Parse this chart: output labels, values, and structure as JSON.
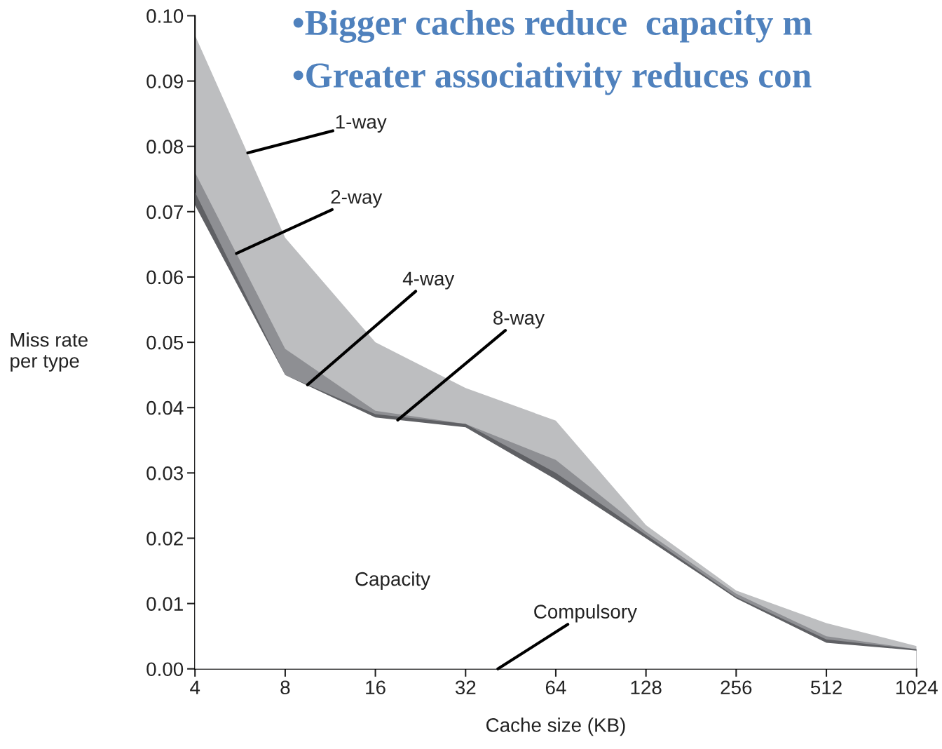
{
  "chart_data": {
    "type": "area",
    "xlabel": "Cache size (KB)",
    "ylabel": "Miss rate\nper type",
    "x": [
      4,
      8,
      16,
      32,
      64,
      128,
      256,
      512,
      1024
    ],
    "log": "x",
    "xlim": [
      4,
      1024
    ],
    "xticks": [
      4,
      8,
      16,
      32,
      64,
      128,
      256,
      512,
      1024
    ],
    "series": [
      {
        "color": "#bdbec0",
        "values": [
          0.097,
          0.066,
          0.05,
          0.043,
          0.038,
          0.022,
          0.012,
          0.007,
          0.0035
        ]
      },
      {
        "color": "#8e8f93",
        "values": [
          0.076,
          0.049,
          0.0395,
          0.0375,
          0.032,
          0.021,
          0.0115,
          0.005,
          0.003
        ]
      },
      {
        "color": "#5f6064",
        "values": [
          0.073,
          0.045,
          0.039,
          0.0375,
          0.03,
          0.0205,
          0.011,
          0.0045,
          0.003
        ]
      },
      {
        "color": "#ffffff",
        "values": [
          0.071,
          0.045,
          0.0385,
          0.037,
          0.029,
          0.02,
          0.0108,
          0.004,
          0.0028
        ]
      }
    ],
    "ylim": [
      0,
      0.1
    ],
    "yticks": [
      {
        "value": 0,
        "label": "0.00"
      },
      {
        "value": 0.01,
        "label": "0.01"
      },
      {
        "value": 0.02,
        "label": "0.02"
      },
      {
        "value": 0.03,
        "label": "0.03"
      },
      {
        "value": 0.04,
        "label": "0.04"
      },
      {
        "value": 0.05,
        "label": "0.05"
      },
      {
        "value": 0.06,
        "label": "0.06"
      },
      {
        "value": 0.07,
        "label": "0.07"
      },
      {
        "value": 0.08,
        "label": "0.08"
      },
      {
        "value": 0.09,
        "label": "0.09"
      },
      {
        "value": 0.1,
        "label": "0.10"
      }
    ],
    "grid": false,
    "legend": false,
    "annotations": [
      "•Bigger caches reduce  capacity m",
      "•Greater associativity reduces con",
      {
        "text": "1-way",
        "x": 6,
        "y": 0.079
      },
      {
        "text": "2-way",
        "x": 5.5,
        "y": 0.0636
      },
      {
        "text": "4-way",
        "x": 9.5,
        "y": 0.0435
      },
      {
        "text": "8-way",
        "x": 19,
        "y": 0.0381
      },
      "Capacity",
      {
        "text": "Compulsory",
        "x": 41,
        "y": 0
      }
    ]
  }
}
